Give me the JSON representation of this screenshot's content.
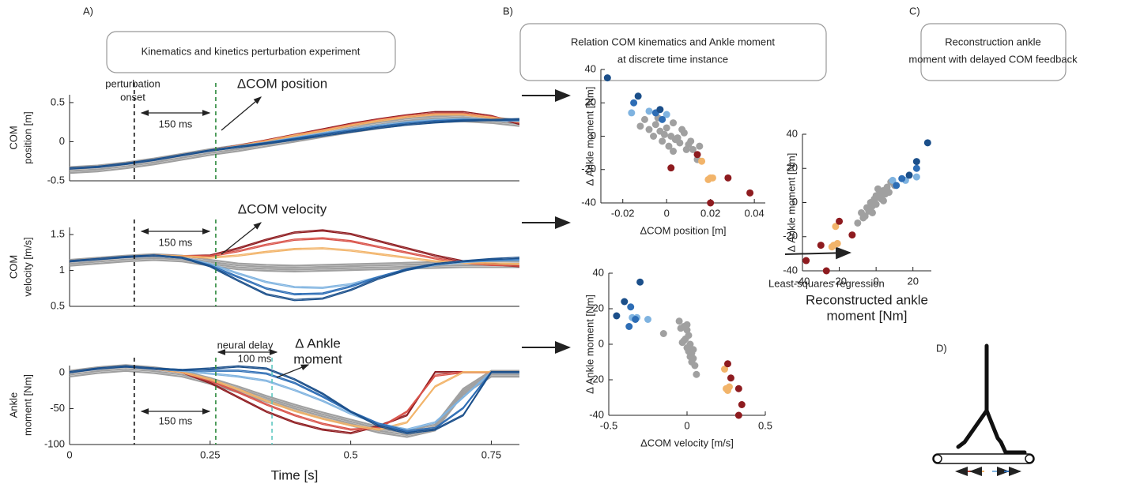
{
  "panels": [
    {
      "label": "A)",
      "title": [
        "Kinematics and kinetics perturbation experiment"
      ]
    },
    {
      "label": "B)",
      "title": [
        "Relation COM kinematics and Ankle moment",
        "at discrete time instance"
      ]
    },
    {
      "label": "C)",
      "title": [
        "Reconstruction ankle",
        "moment with delayed COM feedback"
      ]
    },
    {
      "label": "D)"
    }
  ],
  "regression_label": "Least-squares regression",
  "chart_data": [
    {
      "type": "line",
      "ylabel": [
        "COM",
        "position [m]"
      ],
      "x": [
        0,
        0.05,
        0.1,
        0.15,
        0.2,
        0.25,
        0.3,
        0.35,
        0.4,
        0.45,
        0.5,
        0.55,
        0.6,
        0.65,
        0.7,
        0.75,
        0.8
      ],
      "xlim": [
        0,
        0.8
      ],
      "ylim": [
        -0.5,
        0.6
      ],
      "yticks": [
        -0.5,
        0,
        0.5
      ],
      "vlines": [
        {
          "x": 0.115,
          "color": "#111"
        },
        {
          "x": 0.26,
          "color": "#2e8b3e"
        }
      ],
      "annotations": [
        "perturbation",
        "onset",
        "150 ms",
        "ΔCOM position"
      ],
      "series": [
        {
          "color": "#a0a0a0",
          "values": [
            -0.35,
            -0.33,
            -0.29,
            -0.24,
            -0.18,
            -0.12,
            -0.07,
            -0.01,
            0.05,
            0.11,
            0.17,
            0.22,
            0.27,
            0.3,
            0.31,
            0.29,
            0.25
          ]
        },
        {
          "color": "#8e1b1f",
          "values": [
            -0.35,
            -0.33,
            -0.29,
            -0.24,
            -0.18,
            -0.12,
            -0.06,
            0.01,
            0.08,
            0.15,
            0.22,
            0.28,
            0.33,
            0.37,
            0.37,
            0.32,
            0.22
          ]
        },
        {
          "color": "#d9534a",
          "values": [
            -0.35,
            -0.33,
            -0.29,
            -0.24,
            -0.18,
            -0.12,
            -0.062,
            0.005,
            0.075,
            0.14,
            0.21,
            0.27,
            0.32,
            0.35,
            0.35,
            0.31,
            0.24
          ]
        },
        {
          "color": "#f2b46a",
          "values": [
            -0.35,
            -0.33,
            -0.29,
            -0.24,
            -0.18,
            -0.12,
            -0.065,
            0.0,
            0.07,
            0.13,
            0.2,
            0.26,
            0.31,
            0.34,
            0.34,
            0.3,
            0.25
          ]
        },
        {
          "color": "#7fb3e0",
          "values": [
            -0.35,
            -0.33,
            -0.29,
            -0.24,
            -0.18,
            -0.12,
            -0.07,
            -0.02,
            0.04,
            0.1,
            0.15,
            0.2,
            0.24,
            0.27,
            0.28,
            0.27,
            0.26
          ]
        },
        {
          "color": "#2d6db5",
          "values": [
            -0.35,
            -0.33,
            -0.29,
            -0.24,
            -0.18,
            -0.12,
            -0.072,
            -0.025,
            0.03,
            0.085,
            0.135,
            0.185,
            0.225,
            0.255,
            0.27,
            0.27,
            0.27
          ]
        },
        {
          "color": "#1b4f8a",
          "values": [
            -0.35,
            -0.33,
            -0.29,
            -0.24,
            -0.18,
            -0.12,
            -0.075,
            -0.03,
            0.02,
            0.07,
            0.12,
            0.17,
            0.21,
            0.24,
            0.26,
            0.27,
            0.28
          ]
        }
      ]
    },
    {
      "type": "line",
      "ylabel": [
        "COM",
        "velocity [m/s]"
      ],
      "x": [
        0,
        0.05,
        0.1,
        0.15,
        0.2,
        0.25,
        0.3,
        0.35,
        0.4,
        0.45,
        0.5,
        0.55,
        0.6,
        0.65,
        0.7,
        0.75,
        0.8
      ],
      "xlim": [
        0,
        0.8
      ],
      "ylim": [
        0.5,
        1.6
      ],
      "yticks": [
        0.5,
        1,
        1.5
      ],
      "vlines": [
        {
          "x": 0.115,
          "color": "#111"
        },
        {
          "x": 0.26,
          "color": "#2e8b3e"
        }
      ],
      "annotations": [
        "150 ms",
        "ΔCOM velocity"
      ],
      "series": [
        {
          "color": "#a0a0a0",
          "values": [
            1.12,
            1.15,
            1.18,
            1.2,
            1.18,
            1.12,
            1.07,
            1.05,
            1.04,
            1.05,
            1.06,
            1.07,
            1.08,
            1.09,
            1.1,
            1.1,
            1.1
          ]
        },
        {
          "color": "#8e1b1f",
          "values": [
            1.12,
            1.15,
            1.18,
            1.2,
            1.19,
            1.2,
            1.3,
            1.42,
            1.52,
            1.55,
            1.5,
            1.4,
            1.3,
            1.2,
            1.12,
            1.08,
            1.05
          ]
        },
        {
          "color": "#d9534a",
          "values": [
            1.12,
            1.15,
            1.18,
            1.2,
            1.19,
            1.19,
            1.26,
            1.35,
            1.42,
            1.44,
            1.4,
            1.32,
            1.24,
            1.16,
            1.1,
            1.07,
            1.06
          ]
        },
        {
          "color": "#f2b46a",
          "values": [
            1.12,
            1.15,
            1.18,
            1.2,
            1.19,
            1.17,
            1.2,
            1.25,
            1.29,
            1.3,
            1.27,
            1.22,
            1.17,
            1.12,
            1.1,
            1.09,
            1.08
          ]
        },
        {
          "color": "#7fb3e0",
          "values": [
            1.12,
            1.15,
            1.18,
            1.2,
            1.17,
            1.08,
            0.95,
            0.83,
            0.76,
            0.75,
            0.8,
            0.9,
            1.0,
            1.07,
            1.11,
            1.13,
            1.14
          ]
        },
        {
          "color": "#2d6db5",
          "values": [
            1.12,
            1.15,
            1.18,
            1.2,
            1.17,
            1.06,
            0.9,
            0.74,
            0.66,
            0.67,
            0.77,
            0.9,
            1.01,
            1.08,
            1.12,
            1.14,
            1.15
          ]
        },
        {
          "color": "#1b4f8a",
          "values": [
            1.12,
            1.15,
            1.18,
            1.2,
            1.17,
            1.05,
            0.85,
            0.66,
            0.58,
            0.6,
            0.72,
            0.88,
            1.0,
            1.08,
            1.12,
            1.15,
            1.17
          ]
        }
      ]
    },
    {
      "type": "line",
      "ylabel": [
        "Ankle",
        "moment [Nm]"
      ],
      "xlabel": "Time [s]",
      "x": [
        0,
        0.05,
        0.1,
        0.15,
        0.2,
        0.25,
        0.3,
        0.35,
        0.4,
        0.45,
        0.5,
        0.55,
        0.6,
        0.65,
        0.7,
        0.75,
        0.8
      ],
      "xlim": [
        0,
        0.8
      ],
      "ylim": [
        -100,
        10
      ],
      "yticks": [
        -100,
        -50,
        0
      ],
      "xticks": [
        0,
        0.25,
        0.5,
        0.75
      ],
      "vlines": [
        {
          "x": 0.115,
          "color": "#111"
        },
        {
          "x": 0.26,
          "color": "#2e8b3e"
        },
        {
          "x": 0.36,
          "color": "#5fc7c0"
        }
      ],
      "annotations": [
        "neural delay",
        "100 ms",
        "Δ Ankle",
        "moment",
        "150 ms"
      ],
      "series": [
        {
          "color": "#a0a0a0",
          "values": [
            0,
            5,
            8,
            5,
            0,
            -10,
            -22,
            -35,
            -47,
            -58,
            -68,
            -78,
            -84,
            -75,
            -25,
            0,
            0
          ]
        },
        {
          "color": "#8e1b1f",
          "values": [
            0,
            5,
            8,
            5,
            0,
            -15,
            -35,
            -55,
            -70,
            -80,
            -85,
            -75,
            -60,
            0,
            0,
            0,
            0
          ]
        },
        {
          "color": "#d9534a",
          "values": [
            0,
            5,
            8,
            5,
            0,
            -12,
            -28,
            -45,
            -60,
            -72,
            -80,
            -78,
            -55,
            -5,
            0,
            0,
            0
          ]
        },
        {
          "color": "#f2b46a",
          "values": [
            0,
            5,
            8,
            5,
            0,
            -10,
            -24,
            -40,
            -54,
            -65,
            -74,
            -80,
            -70,
            -20,
            0,
            0,
            0
          ]
        },
        {
          "color": "#7fb3e0",
          "values": [
            0,
            5,
            8,
            5,
            2,
            -2,
            -6,
            -12,
            -25,
            -40,
            -58,
            -72,
            -80,
            -70,
            -35,
            0,
            0
          ]
        },
        {
          "color": "#2d6db5",
          "values": [
            0,
            5,
            8,
            5,
            3,
            2,
            2,
            -2,
            -15,
            -34,
            -55,
            -72,
            -82,
            -78,
            -50,
            0,
            0
          ]
        },
        {
          "color": "#1b4f8a",
          "values": [
            0,
            5,
            8,
            5,
            3,
            5,
            8,
            5,
            -10,
            -30,
            -55,
            -75,
            -85,
            -80,
            -60,
            0,
            0
          ]
        }
      ]
    },
    {
      "type": "scatter",
      "ylabel": "Δ Ankle moment [Nm]",
      "xlabel": "ΔCOM position [m]",
      "xlim": [
        -0.03,
        0.045
      ],
      "xticks": [
        -0.02,
        0,
        0.02,
        0.04
      ],
      "ylim": [
        -40,
        40
      ],
      "yticks": [
        -40,
        -20,
        0,
        20,
        40
      ],
      "series": [
        {
          "color": "#a0a0a0",
          "x": [
            -0.01,
            -0.005,
            -0.003,
            0,
            0.002,
            0.004,
            -0.006,
            0.006,
            0.008,
            0.01,
            -0.012,
            -0.002,
            0.003,
            0.012,
            0.005,
            -0.004,
            0.001,
            0.007,
            -0.008,
            0.014,
            0.009,
            -0.001,
            0.011,
            0.003,
            0.015
          ],
          "values": [
            10,
            7,
            3,
            5,
            0,
            -2,
            0,
            -4,
            2,
            -5,
            6,
            -3,
            8,
            -8,
            -1,
            11,
            -6,
            4,
            4,
            -14,
            -8,
            1,
            -3,
            -9,
            -6
          ]
        },
        {
          "color": "#f2b46a",
          "x": [
            0.016,
            0.019,
            0.021,
            0.02
          ],
          "values": [
            -15,
            -26,
            -25,
            -25
          ]
        },
        {
          "color": "#8e1b1f",
          "x": [
            0.002,
            0.014,
            0.028,
            0.038,
            0.02
          ],
          "values": [
            -19,
            -11,
            -25,
            -34,
            -40
          ]
        },
        {
          "color": "#7fb3e0",
          "x": [
            -0.016,
            0.0,
            -0.008
          ],
          "values": [
            14,
            13,
            15
          ]
        },
        {
          "color": "#2d6db5",
          "x": [
            -0.015,
            -0.005,
            -0.002
          ],
          "values": [
            20,
            14,
            10
          ]
        },
        {
          "color": "#1b4f8a",
          "x": [
            -0.027,
            -0.013,
            -0.003
          ],
          "values": [
            35,
            24,
            16
          ]
        }
      ]
    },
    {
      "type": "scatter",
      "ylabel": "Δ Ankle moment [Nm]",
      "xlabel": "ΔCOM velocity [m/s]",
      "xlim": [
        -0.5,
        0.5
      ],
      "xticks": [
        -0.5,
        0,
        0.5
      ],
      "ylim": [
        -40,
        40
      ],
      "yticks": [
        -40,
        -20,
        0,
        20,
        40
      ],
      "series": [
        {
          "color": "#a0a0a0",
          "x": [
            -0.05,
            -0.02,
            0,
            0.01,
            -0.01,
            0.02,
            0,
            0.03,
            -0.03,
            0.04,
            0.05,
            0.06,
            -0.15,
            0.01,
            0.02,
            -0.02,
            0.03,
            0,
            0.04,
            -0.04
          ],
          "values": [
            13,
            10,
            8,
            5,
            3,
            0,
            -2,
            -5,
            1,
            -8,
            -12,
            -17,
            6,
            -4,
            -7,
            2,
            -10,
            11,
            -3,
            9
          ]
        },
        {
          "color": "#f2b46a",
          "x": [
            0.24,
            0.25,
            0.27,
            0.26
          ],
          "values": [
            -14,
            -25,
            -24,
            -26
          ]
        },
        {
          "color": "#8e1b1f",
          "x": [
            0.26,
            0.28,
            0.33,
            0.35,
            0.33
          ],
          "values": [
            -11,
            -19,
            -25,
            -34,
            -40
          ]
        },
        {
          "color": "#7fb3e0",
          "x": [
            -0.25,
            -0.32,
            -0.35
          ],
          "values": [
            14,
            15,
            15
          ]
        },
        {
          "color": "#2d6db5",
          "x": [
            -0.36,
            -0.37,
            -0.33
          ],
          "values": [
            21,
            10,
            14
          ]
        },
        {
          "color": "#1b4f8a",
          "x": [
            -0.45,
            -0.4,
            -0.3
          ],
          "values": [
            16,
            24,
            35
          ]
        }
      ]
    },
    {
      "type": "scatter",
      "ylabel": "Δ Ankle moment [Nm]",
      "xlabel": [
        "Reconstructed ankle",
        "moment [Nm]"
      ],
      "xlim": [
        -40,
        30
      ],
      "xticks": [
        -40,
        -20,
        0,
        20
      ],
      "ylim": [
        -40,
        40
      ],
      "yticks": [
        -40,
        -20,
        0,
        20,
        40
      ],
      "series": [
        {
          "color": "#a0a0a0",
          "x": [
            -10,
            -8,
            -6,
            -5,
            -4,
            -3,
            -2,
            -1,
            0,
            0,
            1,
            2,
            3,
            4,
            5,
            6,
            7,
            8,
            -7,
            -2,
            2,
            4,
            1,
            -3,
            10
          ],
          "values": [
            -12,
            -6,
            -8,
            -3,
            -5,
            0,
            -2,
            2,
            -1,
            4,
            3,
            6,
            2,
            7,
            5,
            9,
            6,
            12,
            -9,
            -6,
            5,
            1,
            8,
            -4,
            10
          ]
        },
        {
          "color": "#f2b46a",
          "x": [
            -22,
            -23,
            -24,
            -21
          ],
          "values": [
            -14,
            -25,
            -26,
            -24
          ]
        },
        {
          "color": "#8e1b1f",
          "x": [
            -20,
            -13,
            -30,
            -38,
            -27
          ],
          "values": [
            -11,
            -19,
            -25,
            -34,
            -40
          ]
        },
        {
          "color": "#7fb3e0",
          "x": [
            22,
            16,
            9
          ],
          "values": [
            15,
            13,
            13
          ]
        },
        {
          "color": "#2d6db5",
          "x": [
            14,
            22,
            11
          ],
          "values": [
            14,
            20,
            10
          ]
        },
        {
          "color": "#1b4f8a",
          "x": [
            28,
            22,
            18
          ],
          "values": [
            35,
            24,
            16
          ]
        }
      ]
    }
  ]
}
